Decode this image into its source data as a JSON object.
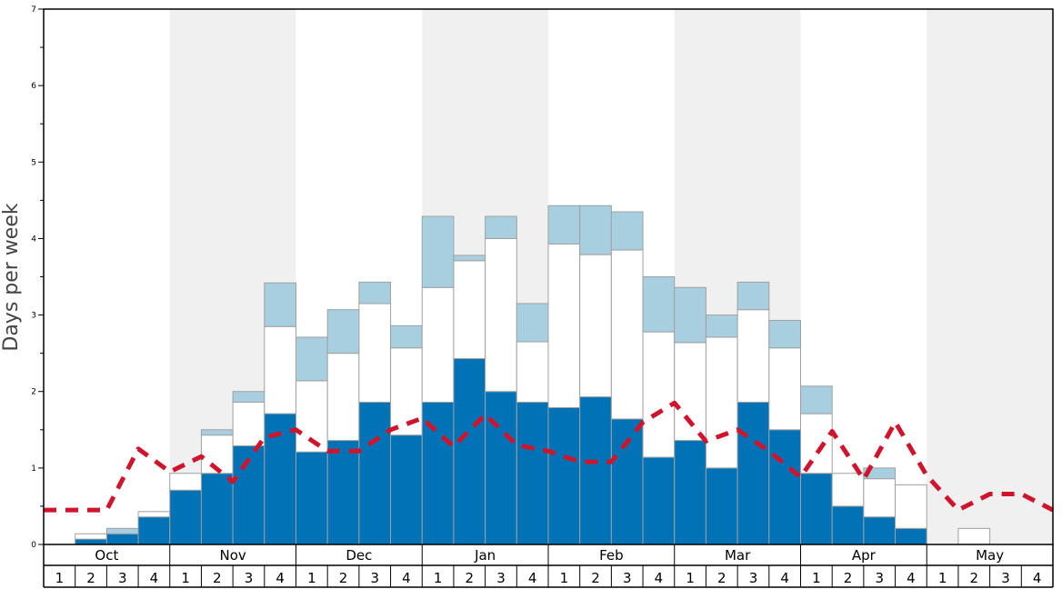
{
  "chart_data": {
    "type": "bar",
    "ylabel": "Days per week",
    "ylim": [
      0,
      7
    ],
    "y_ticks": [
      "0",
      "1",
      "2",
      "3",
      "4",
      "5",
      "6",
      "7"
    ],
    "months": [
      "Oct",
      "Nov",
      "Dec",
      "Jan",
      "Feb",
      "Mar",
      "Apr",
      "May"
    ],
    "week_labels": [
      "1",
      "2",
      "3",
      "4"
    ],
    "stacked": true,
    "series": [
      {
        "color": "#0072b5",
        "values": [
          0,
          0.07,
          0.14,
          0.36,
          0.71,
          0.93,
          1.29,
          1.71,
          1.21,
          1.36,
          1.86,
          1.43,
          1.86,
          2.43,
          2.0,
          1.86,
          1.79,
          1.93,
          1.64,
          1.14,
          1.36,
          1.0,
          1.86,
          1.5,
          0.93,
          0.5,
          0.36,
          0.21,
          0,
          0,
          0,
          0
        ]
      },
      {
        "color": "#ffffff",
        "values": [
          0,
          0.07,
          0,
          0.07,
          0.22,
          0.5,
          0.57,
          1.14,
          0.93,
          1.14,
          1.29,
          1.14,
          1.5,
          1.28,
          2.0,
          0.79,
          2.14,
          1.86,
          2.21,
          1.64,
          1.28,
          1.71,
          1.21,
          1.07,
          0.78,
          0.43,
          0.5,
          0.57,
          0,
          0.21,
          0,
          0
        ]
      },
      {
        "color": "#a8cfdf",
        "values": [
          0,
          0,
          0.07,
          0,
          0,
          0.07,
          0.14,
          0.57,
          0.57,
          0.57,
          0.28,
          0.29,
          0.93,
          0.07,
          0.29,
          0.5,
          0.5,
          0.64,
          0.5,
          0.72,
          0.72,
          0.29,
          0.36,
          0.36,
          0.36,
          0,
          0.14,
          0,
          0,
          0,
          0,
          0
        ]
      }
    ],
    "line": {
      "color": "#d0142c",
      "style": "dashed",
      "values": [
        0.45,
        0.45,
        0.45,
        1.25,
        0.95,
        1.15,
        0.82,
        1.4,
        1.5,
        1.22,
        1.22,
        1.5,
        1.65,
        1.28,
        1.7,
        1.3,
        1.22,
        1.08,
        1.08,
        1.6,
        1.85,
        1.35,
        1.5,
        1.22,
        0.88,
        1.48,
        0.85,
        1.6,
        0.9,
        0.45,
        0.66,
        0.66,
        0.45
      ]
    },
    "colors": {
      "shade": "#f0f0f0",
      "bar_border": "#a0a0a0"
    }
  }
}
